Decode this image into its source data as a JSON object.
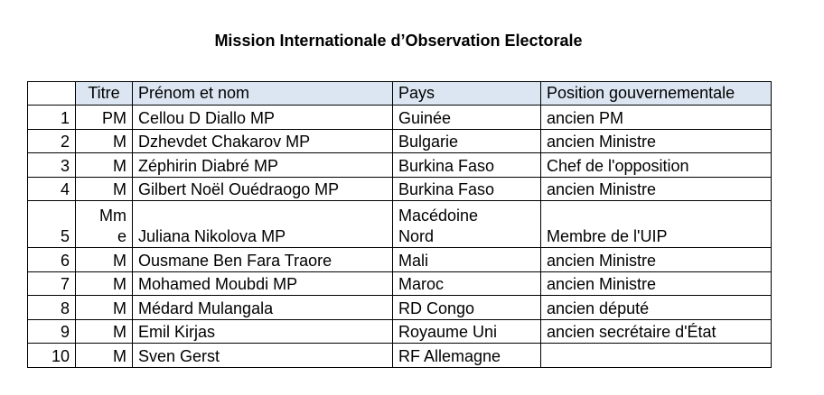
{
  "title": "Mission Internationale d’Observation Electorale",
  "table": {
    "headers": {
      "num": "",
      "titre": "Titre",
      "nom": "Prénom et nom",
      "pays": "Pays",
      "position": "Position gouvernementale"
    },
    "rows": [
      {
        "num": "1",
        "titre": "PM",
        "nom": "Cellou D Diallo MP",
        "pays": "Guinée",
        "position": "ancien PM"
      },
      {
        "num": "2",
        "titre": "M",
        "nom": "Dzhevdet Chakarov MP",
        "pays": "Bulgarie",
        "position": "ancien Ministre"
      },
      {
        "num": "3",
        "titre": "M",
        "nom": "Zéphirin Diabré MP",
        "pays": "Burkina Faso",
        "position": "Chef de l'opposition"
      },
      {
        "num": "4",
        "titre": "M",
        "nom": "Gilbert Noël Ouédraogo MP",
        "pays": "Burkina Faso",
        "position": "ancien Ministre"
      },
      {
        "num": "5",
        "titre_line1": "Mm",
        "titre_line2": "e",
        "nom": "Juliana Nikolova MP",
        "pays_line1": "Macédoine",
        "pays_line2": "Nord",
        "position": "Membre de l'UIP"
      },
      {
        "num": "6",
        "titre": "M",
        "nom": "Ousmane Ben Fara Traore",
        "pays": "Mali",
        "position": "ancien Ministre"
      },
      {
        "num": "7",
        "titre": "M",
        "nom": "Mohamed Moubdi MP",
        "pays": "Maroc",
        "position": "ancien Ministre"
      },
      {
        "num": "8",
        "titre": "M",
        "nom": "Médard Mulangala",
        "pays": "RD Congo",
        "position": "ancien député"
      },
      {
        "num": "9",
        "titre": "M",
        "nom": "Emil Kirjas",
        "pays": "Royaume Uni",
        "position": "ancien secrétaire d'État"
      },
      {
        "num": "10",
        "titre": "M",
        "nom": "Sven Gerst",
        "pays": "RF Allemagne",
        "position": ""
      }
    ]
  }
}
